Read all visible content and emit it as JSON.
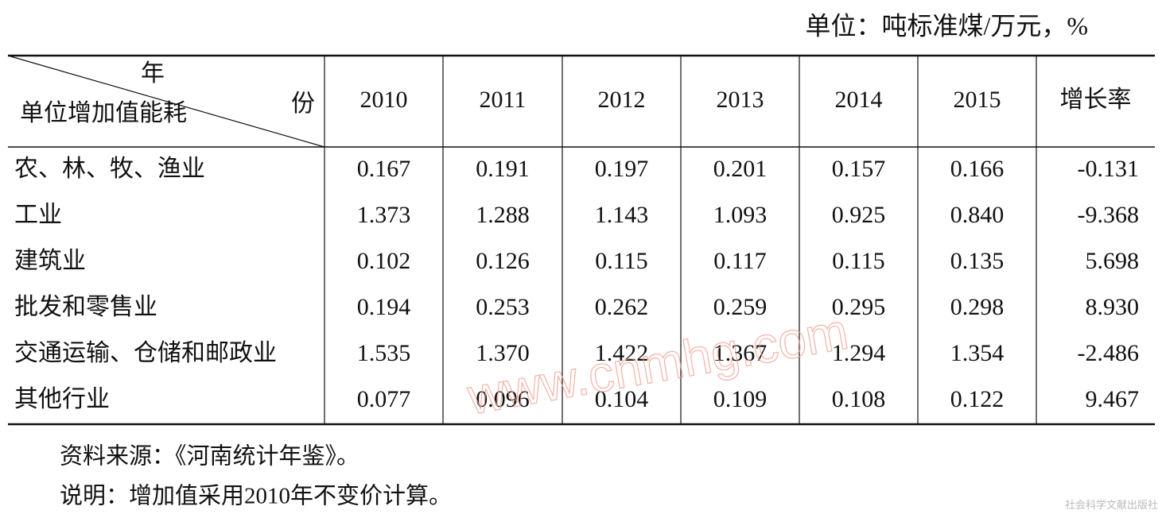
{
  "unit": "单位：吨标准煤/万元，%",
  "table": {
    "corner": {
      "top": "年",
      "right": "份",
      "left": "单位增加值能耗"
    },
    "columns": [
      "2010",
      "2011",
      "2012",
      "2013",
      "2014",
      "2015",
      "增长率"
    ],
    "rows": [
      [
        "农、林、牧、渔业",
        "0.167",
        "0.191",
        "0.197",
        "0.201",
        "0.157",
        "0.166",
        "-0.131"
      ],
      [
        "工业",
        "1.373",
        "1.288",
        "1.143",
        "1.093",
        "0.925",
        "0.840",
        "-9.368"
      ],
      [
        "建筑业",
        "0.102",
        "0.126",
        "0.115",
        "0.117",
        "0.115",
        "0.135",
        "5.698"
      ],
      [
        "批发和零售业",
        "0.194",
        "0.253",
        "0.262",
        "0.259",
        "0.295",
        "0.298",
        "8.930"
      ],
      [
        "交通运输、仓储和邮政业",
        "1.535",
        "1.370",
        "1.422",
        "1.367",
        "1.294",
        "1.354",
        "-2.486"
      ],
      [
        "其他行业",
        "0.077",
        "0.096",
        "0.104",
        "0.109",
        "0.108",
        "0.122",
        "9.467"
      ]
    ]
  },
  "notes": [
    "资料来源：《河南统计年鉴》。",
    "说明：增加值采用2010年不变价计算。"
  ],
  "watermark": "www.cnmhg.com",
  "publisher": "社会科学文献出版社"
}
